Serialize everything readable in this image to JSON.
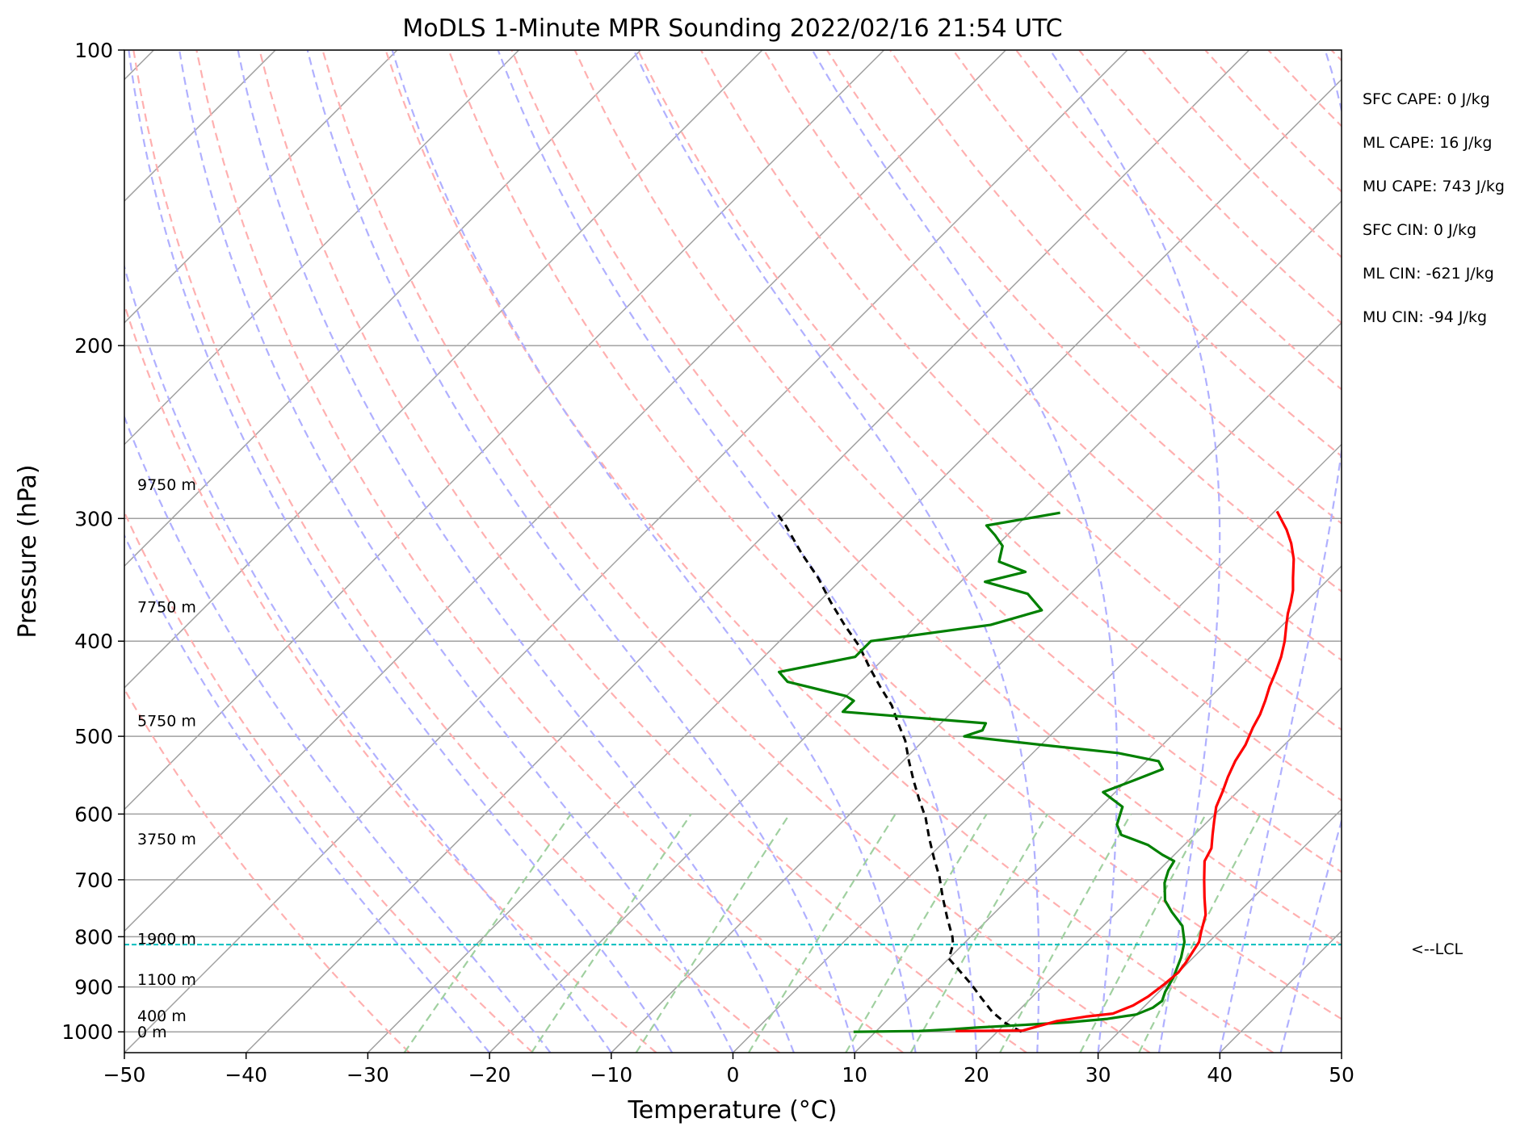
{
  "chart_data": {
    "type": "line",
    "title": "MoDLS 1-Minute MPR Sounding 2022/02/16 21:54 UTC",
    "xlabel": "Temperature (°C)",
    "ylabel": "Pressure (hPa)",
    "xlim": [
      -50,
      50
    ],
    "ylim": [
      1050,
      100
    ],
    "y_scale": "log",
    "x_ticks": [
      -50,
      -40,
      -30,
      -20,
      -10,
      0,
      10,
      20,
      30,
      40,
      50
    ],
    "x_tick_labels": [
      "−50",
      "−40",
      "−30",
      "−20",
      "−10",
      "0",
      "10",
      "20",
      "30",
      "40",
      "50"
    ],
    "y_ticks": [
      100,
      200,
      300,
      400,
      500,
      600,
      700,
      800,
      900,
      1000
    ],
    "y_tick_labels": [
      "100",
      "200",
      "300",
      "400",
      "500",
      "600",
      "700",
      "800",
      "900",
      "1000"
    ],
    "grid": true,
    "colors": {
      "temperature": "#ff0000",
      "dewpoint": "#008000",
      "parcel": "#000000",
      "lcl_line": "#00bfbf",
      "isotherm": "#a0a0a0",
      "dry_adiabat": "#ffb0b0",
      "moist_adiabat": "#b0b0ff",
      "mixing_ratio": "#a0d0a0"
    },
    "series": [
      {
        "key": "temperature",
        "values": [
          [
            16.5,
            998
          ],
          [
            22,
            997
          ],
          [
            24,
            975
          ],
          [
            26,
            965
          ],
          [
            28,
            958
          ],
          [
            29,
            940
          ],
          [
            29.5,
            920
          ],
          [
            29.8,
            895
          ],
          [
            30,
            870
          ],
          [
            29.8,
            850
          ],
          [
            29.5,
            830
          ],
          [
            29.2,
            810
          ],
          [
            28.5,
            790
          ],
          [
            27.5,
            760
          ],
          [
            26,
            730
          ],
          [
            24.5,
            700
          ],
          [
            23,
            670
          ],
          [
            22.5,
            650
          ],
          [
            21.5,
            630
          ],
          [
            20.5,
            610
          ],
          [
            19.5,
            590
          ],
          [
            18.8,
            570
          ],
          [
            18,
            550
          ],
          [
            17.3,
            530
          ],
          [
            16.8,
            510
          ],
          [
            16,
            490
          ],
          [
            15.5,
            475
          ],
          [
            14.8,
            460
          ],
          [
            14,
            445
          ],
          [
            13.3,
            430
          ],
          [
            12.5,
            415
          ],
          [
            11.5,
            400
          ],
          [
            10.3,
            385
          ],
          [
            9.5,
            375
          ],
          [
            8.8,
            365
          ],
          [
            8,
            355
          ],
          [
            7,
            345
          ],
          [
            5.5,
            330
          ],
          [
            4,
            318
          ],
          [
            2.5,
            308
          ],
          [
            0.2,
            295
          ]
        ]
      },
      {
        "key": "dewpoint",
        "values": [
          [
            8.2,
            1000
          ],
          [
            13.5,
            998
          ],
          [
            16,
            994
          ],
          [
            18,
            990
          ],
          [
            21,
            985
          ],
          [
            25,
            978
          ],
          [
            28,
            970
          ],
          [
            30,
            960
          ],
          [
            30.8,
            945
          ],
          [
            31,
            930
          ],
          [
            30.5,
            910
          ],
          [
            30,
            880
          ],
          [
            29.5,
            860
          ],
          [
            29,
            840
          ],
          [
            28.5,
            825
          ],
          [
            28,
            810
          ],
          [
            26.5,
            780
          ],
          [
            24.5,
            755
          ],
          [
            23,
            735
          ],
          [
            21.5,
            705
          ],
          [
            20.8,
            685
          ],
          [
            20.5,
            670
          ],
          [
            19,
            660
          ],
          [
            17,
            645
          ],
          [
            14,
            630
          ],
          [
            12.8,
            615
          ],
          [
            11.8,
            590
          ],
          [
            9,
            570
          ],
          [
            10.5,
            555
          ],
          [
            12,
            540
          ],
          [
            11,
            530
          ],
          [
            7,
            520
          ],
          [
            0,
            510
          ],
          [
            -7,
            500
          ],
          [
            -6,
            493
          ],
          [
            -6.3,
            485
          ],
          [
            -19,
            472
          ],
          [
            -19,
            460
          ],
          [
            -20,
            455
          ],
          [
            -26,
            440
          ],
          [
            -27.5,
            430
          ],
          [
            -22.5,
            415
          ],
          [
            -22.5,
            400
          ],
          [
            -14,
            385
          ],
          [
            -11,
            372
          ],
          [
            -13.5,
            358
          ],
          [
            -18,
            348
          ],
          [
            -15.5,
            340
          ],
          [
            -18.5,
            332
          ],
          [
            -19.5,
            320
          ],
          [
            -21,
            312
          ],
          [
            -22.5,
            305
          ],
          [
            -17.5,
            296
          ]
        ]
      },
      {
        "key": "parcel",
        "values": [
          [
            22,
            1000
          ],
          [
            20,
            980
          ],
          [
            18,
            955
          ],
          [
            16,
            925
          ],
          [
            14,
            895
          ],
          [
            12,
            868
          ],
          [
            10,
            842
          ],
          [
            9.2,
            815
          ],
          [
            8.5,
            800
          ],
          [
            6.5,
            765
          ],
          [
            4.5,
            730
          ],
          [
            2.5,
            695
          ],
          [
            0.5,
            665
          ],
          [
            -1.5,
            635
          ],
          [
            -3.5,
            605
          ],
          [
            -5.5,
            580
          ],
          [
            -7.5,
            555
          ],
          [
            -9.5,
            530
          ],
          [
            -11.5,
            505
          ],
          [
            -13.5,
            485
          ],
          [
            -15.5,
            465
          ],
          [
            -18,
            445
          ],
          [
            -20.5,
            425
          ],
          [
            -23,
            405
          ],
          [
            -26,
            385
          ],
          [
            -29,
            365
          ],
          [
            -32,
            345
          ],
          [
            -35.5,
            325
          ],
          [
            -39,
            305
          ],
          [
            -41,
            295
          ]
        ]
      }
    ],
    "lcl_pressure": 815,
    "lcl_label": "<--LCL",
    "height_labels": [
      {
        "text": "9750 m",
        "p": 277
      },
      {
        "text": "7750 m",
        "p": 369
      },
      {
        "text": "5750 m",
        "p": 482
      },
      {
        "text": "3750 m",
        "p": 636
      },
      {
        "text": "1900 m",
        "p": 803
      },
      {
        "text": "1100 m",
        "p": 884
      },
      {
        "text": "400 m",
        "p": 962
      },
      {
        "text": "0 m",
        "p": 1000
      }
    ],
    "stats": [
      "SFC CAPE: 0 J/kg",
      "ML CAPE: 16 J/kg",
      "MU CAPE: 743 J/kg",
      "SFC CIN: 0 J/kg",
      "ML CIN: -621 J/kg",
      "MU CIN: -94 J/kg"
    ]
  }
}
